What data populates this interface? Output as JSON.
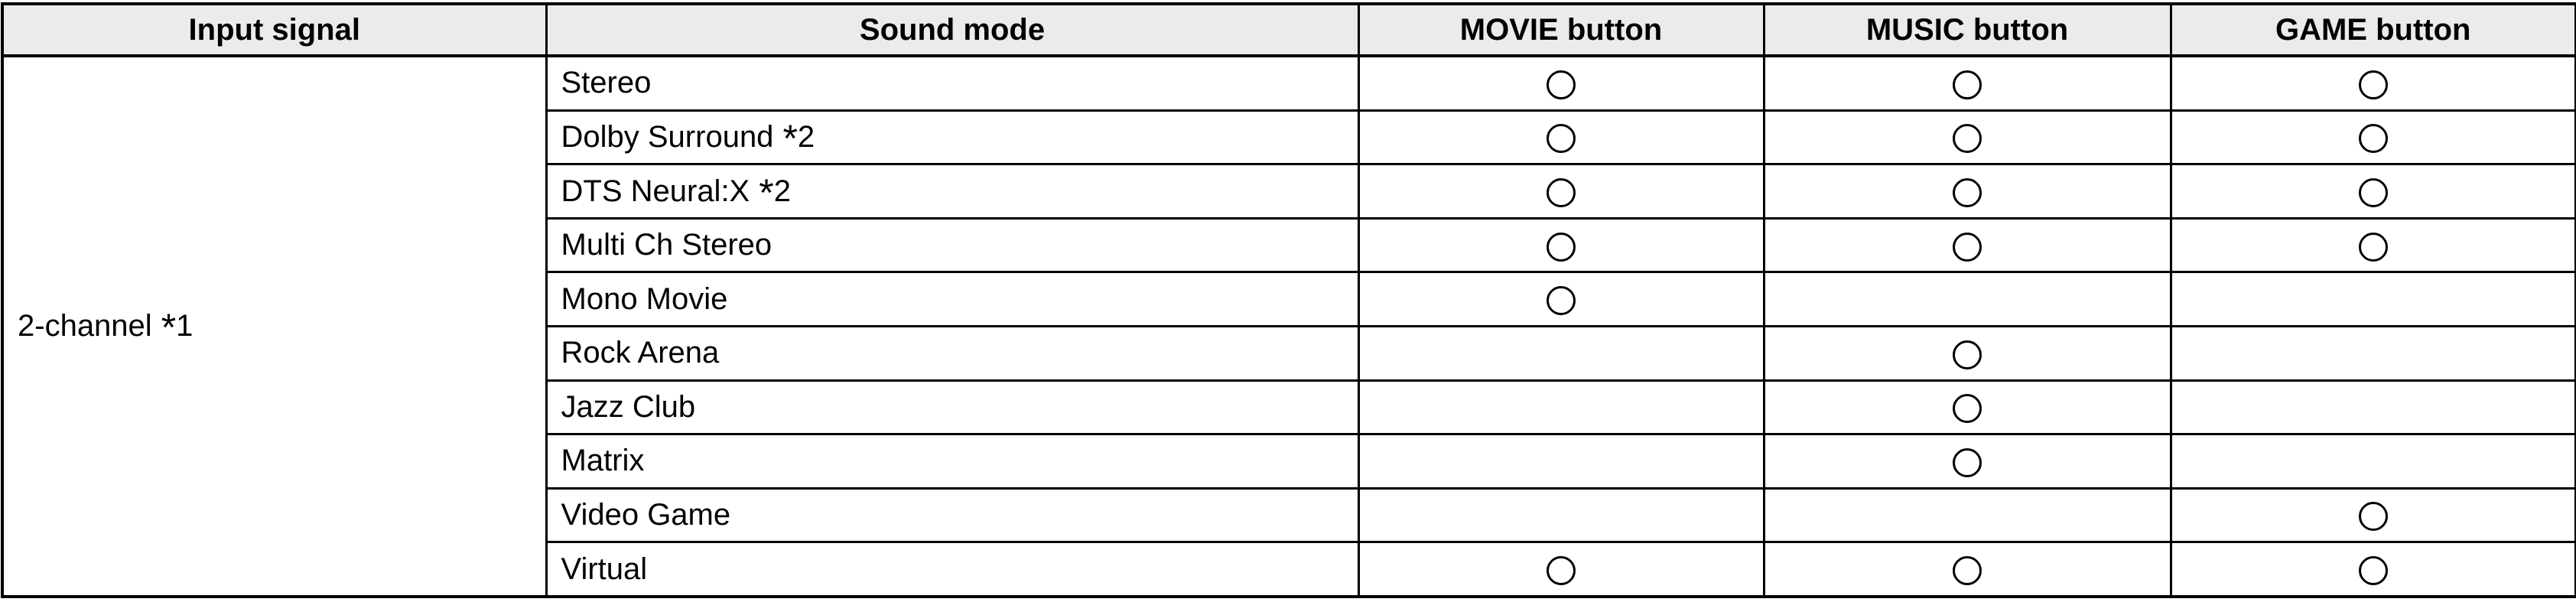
{
  "page": {
    "background": "#ffffff"
  },
  "table": {
    "name": "sound-mode-selection-table",
    "colors": {
      "header_bg": "#ebebeb",
      "border": "#000000",
      "text": "#000000",
      "body_bg": "#ffffff"
    },
    "headers": [
      {
        "key": "input_signal",
        "label": "Input signal"
      },
      {
        "key": "sound_mode",
        "label": "Sound mode"
      },
      {
        "key": "movie",
        "label": "MOVIE button"
      },
      {
        "key": "music",
        "label": "MUSIC button"
      },
      {
        "key": "game",
        "label": "GAME button"
      }
    ],
    "input_signal": {
      "label": "2-channel",
      "note_sym": "*",
      "note_num": "1"
    },
    "mark": {
      "supported_symbol": "circle",
      "unsupported_symbol": ""
    },
    "rows": [
      {
        "sound_mode": "Stereo",
        "note_sym": "",
        "note_num": "",
        "movie": true,
        "music": true,
        "game": true
      },
      {
        "sound_mode": "Dolby Surround",
        "note_sym": "*",
        "note_num": "2",
        "movie": true,
        "music": true,
        "game": true
      },
      {
        "sound_mode": "DTS Neural:X",
        "note_sym": "*",
        "note_num": "2",
        "movie": true,
        "music": true,
        "game": true
      },
      {
        "sound_mode": "Multi Ch Stereo",
        "note_sym": "",
        "note_num": "",
        "movie": true,
        "music": true,
        "game": true
      },
      {
        "sound_mode": "Mono Movie",
        "note_sym": "",
        "note_num": "",
        "movie": true,
        "music": false,
        "game": false
      },
      {
        "sound_mode": "Rock Arena",
        "note_sym": "",
        "note_num": "",
        "movie": false,
        "music": true,
        "game": false
      },
      {
        "sound_mode": "Jazz Club",
        "note_sym": "",
        "note_num": "",
        "movie": false,
        "music": true,
        "game": false
      },
      {
        "sound_mode": "Matrix",
        "note_sym": "",
        "note_num": "",
        "movie": false,
        "music": true,
        "game": false
      },
      {
        "sound_mode": "Video Game",
        "note_sym": "",
        "note_num": "",
        "movie": false,
        "music": false,
        "game": true
      },
      {
        "sound_mode": "Virtual",
        "note_sym": "",
        "note_num": "",
        "movie": true,
        "music": true,
        "game": true
      }
    ]
  }
}
